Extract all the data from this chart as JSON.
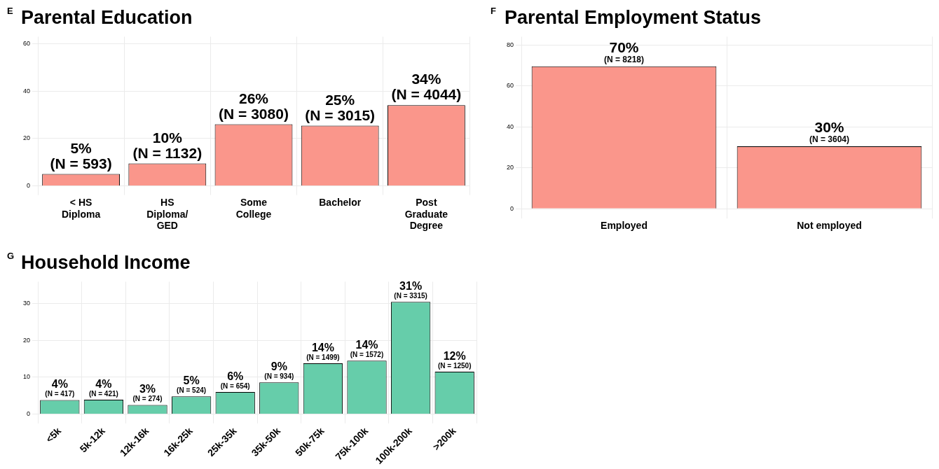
{
  "chart_data": [
    {
      "type": "bar",
      "title": "Parental Education",
      "annotations": [
        "E"
      ],
      "categories": [
        "< HS\nDiploma",
        "HS\nDiploma/\nGED",
        "Some\nCollege",
        "Bachelor",
        "Post\nGraduate\nDegree"
      ],
      "values": [
        5.0,
        9.5,
        26.0,
        25.4,
        34.1
      ],
      "color": "#fa968b",
      "value_labels": [
        "5%\n(N = 593)",
        "10%\n(N = 1132)",
        "26%\n(N = 3080)",
        "25%\n(N = 3015)",
        "34%\n(N = 4044)"
      ],
      "ylim": [
        -1.5,
        63
      ],
      "yticks": [
        0,
        20,
        40,
        60
      ],
      "grid": true
    },
    {
      "type": "bar",
      "title": "Parental Employment Status",
      "annotations": [
        "F"
      ],
      "categories": [
        "Employed",
        "Not employed"
      ],
      "values": [
        69.5,
        30.5
      ],
      "color": "#fa968b",
      "value_labels": [
        "70%\n(N = 8218)",
        "30%\n(N = 3604)"
      ],
      "ylim": [
        -2,
        84
      ],
      "yticks": [
        0,
        20,
        40,
        60,
        80
      ],
      "grid": true
    },
    {
      "type": "bar",
      "title": "Household Income",
      "annotations": [
        "G"
      ],
      "categories": [
        "<5k",
        "5k-12k",
        "12k-16k",
        "16k-25k",
        "25k-35k",
        "35k-50k",
        "50k-75k",
        "75k-100k",
        "100k-200k",
        ">200k"
      ],
      "values": [
        3.8,
        3.9,
        2.5,
        4.8,
        6.0,
        8.6,
        13.8,
        14.5,
        30.5,
        11.5
      ],
      "color": "#66cdaa",
      "value_labels": [
        "4%\n(N = 417)",
        "4%\n(N = 421)",
        "3%\n(N = 274)",
        "5%\n(N = 524)",
        "6%\n(N = 654)",
        "9%\n(N = 934)",
        "14%\n(N = 1499)",
        "14%\n(N = 1572)",
        "31%\n(N = 3315)",
        "12%\n(N = 1250)"
      ],
      "ylim": [
        -1,
        36
      ],
      "yticks": [
        0,
        10,
        20,
        30
      ],
      "grid": true
    }
  ]
}
